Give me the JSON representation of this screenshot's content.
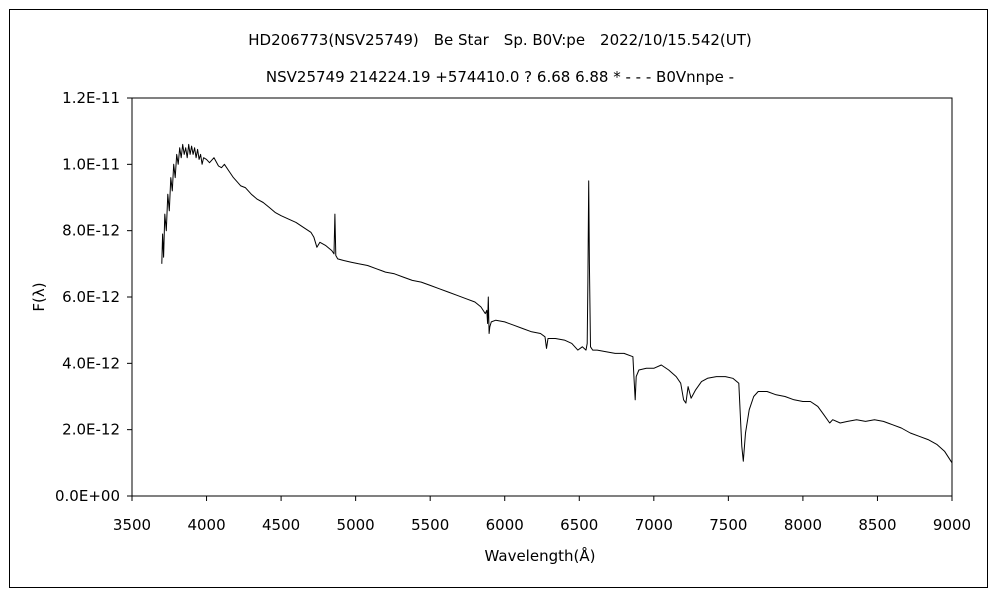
{
  "chart_data": {
    "type": "line",
    "title": "HD206773(NSV25749)　Be Star　Sp. B0V:pe　2022/10/15.542(UT)",
    "subtitle": "NSV25749 214224.19 +574410.0 ? 6.68 6.88 * - - - B0Vnnpe -",
    "xlabel": "Wavelength(Å)",
    "ylabel": "F(λ)",
    "xlim": [
      3500,
      9000
    ],
    "ylim": [
      0,
      1.2e-11
    ],
    "x_ticks": [
      3500,
      4000,
      4500,
      5000,
      5500,
      6000,
      6500,
      7000,
      7500,
      8000,
      8500,
      9000
    ],
    "x_tick_labels": [
      "3500",
      "4000",
      "4500",
      "5000",
      "5500",
      "6000",
      "6500",
      "7000",
      "7500",
      "8000",
      "8500",
      "9000"
    ],
    "y_ticks": [
      0,
      2e-12,
      4e-12,
      6e-12,
      8e-12,
      1e-11,
      1.2e-11
    ],
    "y_tick_labels": [
      "0.0E+00",
      "2.0E-12",
      "4.0E-12",
      "6.0E-12",
      "8.0E-12",
      "1.0E-11",
      "1.2E-11"
    ],
    "grid": false,
    "legend": "none",
    "series": [
      {
        "color": "#000000",
        "points": [
          [
            3700,
            7e-12
          ],
          [
            3705,
            7.9e-12
          ],
          [
            3712,
            7.2e-12
          ],
          [
            3720,
            8.5e-12
          ],
          [
            3730,
            8e-12
          ],
          [
            3740,
            9.1e-12
          ],
          [
            3750,
            8.6e-12
          ],
          [
            3760,
            9.6e-12
          ],
          [
            3770,
            9.2e-12
          ],
          [
            3780,
            1e-11
          ],
          [
            3790,
            9.6e-12
          ],
          [
            3800,
            1.03e-11
          ],
          [
            3810,
            1e-11
          ],
          [
            3820,
            1.05e-11
          ],
          [
            3830,
            1.02e-11
          ],
          [
            3840,
            1.06e-11
          ],
          [
            3850,
            1.03e-11
          ],
          [
            3860,
            1.05e-11
          ],
          [
            3870,
            1.02e-11
          ],
          [
            3880,
            1.06e-11
          ],
          [
            3890,
            1.03e-11
          ],
          [
            3900,
            1.055e-11
          ],
          [
            3910,
            1.03e-11
          ],
          [
            3920,
            1.05e-11
          ],
          [
            3930,
            1.02e-11
          ],
          [
            3940,
            1.045e-11
          ],
          [
            3950,
            1.015e-11
          ],
          [
            3960,
            1.03e-11
          ],
          [
            3970,
            1e-11
          ],
          [
            3980,
            1.02e-11
          ],
          [
            4000,
            1.015e-11
          ],
          [
            4020,
            1.005e-11
          ],
          [
            4050,
            1.02e-11
          ],
          [
            4080,
            9.95e-12
          ],
          [
            4100,
            9.9e-12
          ],
          [
            4120,
            1e-11
          ],
          [
            4150,
            9.8e-12
          ],
          [
            4180,
            9.6e-12
          ],
          [
            4200,
            9.5e-12
          ],
          [
            4230,
            9.35e-12
          ],
          [
            4260,
            9.3e-12
          ],
          [
            4300,
            9.1e-12
          ],
          [
            4340,
            8.95e-12
          ],
          [
            4380,
            8.85e-12
          ],
          [
            4420,
            8.7e-12
          ],
          [
            4460,
            8.55e-12
          ],
          [
            4500,
            8.45e-12
          ],
          [
            4550,
            8.35e-12
          ],
          [
            4600,
            8.25e-12
          ],
          [
            4650,
            8.1e-12
          ],
          [
            4700,
            7.95e-12
          ],
          [
            4720,
            7.8e-12
          ],
          [
            4740,
            7.5e-12
          ],
          [
            4760,
            7.65e-12
          ],
          [
            4800,
            7.55e-12
          ],
          [
            4840,
            7.4e-12
          ],
          [
            4855,
            7.3e-12
          ],
          [
            4861,
            8.5e-12
          ],
          [
            4867,
            7.25e-12
          ],
          [
            4880,
            7.15e-12
          ],
          [
            4920,
            7.1e-12
          ],
          [
            4970,
            7.05e-12
          ],
          [
            5020,
            7e-12
          ],
          [
            5080,
            6.95e-12
          ],
          [
            5140,
            6.85e-12
          ],
          [
            5200,
            6.75e-12
          ],
          [
            5260,
            6.7e-12
          ],
          [
            5320,
            6.6e-12
          ],
          [
            5380,
            6.5e-12
          ],
          [
            5440,
            6.45e-12
          ],
          [
            5500,
            6.35e-12
          ],
          [
            5560,
            6.25e-12
          ],
          [
            5620,
            6.15e-12
          ],
          [
            5680,
            6.05e-12
          ],
          [
            5740,
            5.95e-12
          ],
          [
            5800,
            5.85e-12
          ],
          [
            5840,
            5.7e-12
          ],
          [
            5870,
            5.5e-12
          ],
          [
            5880,
            5.6e-12
          ],
          [
            5885,
            5.2e-12
          ],
          [
            5890,
            6e-12
          ],
          [
            5895,
            4.9e-12
          ],
          [
            5900,
            5.1e-12
          ],
          [
            5910,
            5.25e-12
          ],
          [
            5940,
            5.3e-12
          ],
          [
            6000,
            5.25e-12
          ],
          [
            6060,
            5.15e-12
          ],
          [
            6120,
            5.05e-12
          ],
          [
            6180,
            4.95e-12
          ],
          [
            6240,
            4.9e-12
          ],
          [
            6270,
            4.8e-12
          ],
          [
            6280,
            4.45e-12
          ],
          [
            6290,
            4.75e-12
          ],
          [
            6340,
            4.75e-12
          ],
          [
            6400,
            4.7e-12
          ],
          [
            6450,
            4.6e-12
          ],
          [
            6490,
            4.4e-12
          ],
          [
            6520,
            4.5e-12
          ],
          [
            6545,
            4.4e-12
          ],
          [
            6553,
            4.6e-12
          ],
          [
            6558,
            6.5e-12
          ],
          [
            6563,
            9.5e-12
          ],
          [
            6568,
            7e-12
          ],
          [
            6575,
            4.5e-12
          ],
          [
            6590,
            4.4e-12
          ],
          [
            6620,
            4.4e-12
          ],
          [
            6680,
            4.35e-12
          ],
          [
            6740,
            4.3e-12
          ],
          [
            6800,
            4.3e-12
          ],
          [
            6860,
            4.2e-12
          ],
          [
            6868,
            3.5e-12
          ],
          [
            6875,
            2.9e-12
          ],
          [
            6882,
            3.6e-12
          ],
          [
            6900,
            3.8e-12
          ],
          [
            6950,
            3.85e-12
          ],
          [
            7000,
            3.85e-12
          ],
          [
            7050,
            3.95e-12
          ],
          [
            7100,
            3.8e-12
          ],
          [
            7150,
            3.6e-12
          ],
          [
            7180,
            3.4e-12
          ],
          [
            7200,
            2.9e-12
          ],
          [
            7215,
            2.8e-12
          ],
          [
            7230,
            3.3e-12
          ],
          [
            7250,
            2.95e-12
          ],
          [
            7280,
            3.2e-12
          ],
          [
            7320,
            3.45e-12
          ],
          [
            7360,
            3.55e-12
          ],
          [
            7420,
            3.6e-12
          ],
          [
            7480,
            3.6e-12
          ],
          [
            7530,
            3.55e-12
          ],
          [
            7570,
            3.4e-12
          ],
          [
            7590,
            1.5e-12
          ],
          [
            7600,
            1.05e-12
          ],
          [
            7615,
            1.9e-12
          ],
          [
            7640,
            2.6e-12
          ],
          [
            7670,
            3e-12
          ],
          [
            7700,
            3.15e-12
          ],
          [
            7760,
            3.15e-12
          ],
          [
            7820,
            3.05e-12
          ],
          [
            7880,
            3e-12
          ],
          [
            7940,
            2.9e-12
          ],
          [
            8000,
            2.85e-12
          ],
          [
            8050,
            2.85e-12
          ],
          [
            8100,
            2.7e-12
          ],
          [
            8140,
            2.45e-12
          ],
          [
            8180,
            2.2e-12
          ],
          [
            8200,
            2.3e-12
          ],
          [
            8250,
            2.2e-12
          ],
          [
            8300,
            2.25e-12
          ],
          [
            8360,
            2.3e-12
          ],
          [
            8420,
            2.25e-12
          ],
          [
            8480,
            2.3e-12
          ],
          [
            8540,
            2.25e-12
          ],
          [
            8600,
            2.15e-12
          ],
          [
            8660,
            2.05e-12
          ],
          [
            8720,
            1.9e-12
          ],
          [
            8780,
            1.8e-12
          ],
          [
            8840,
            1.7e-12
          ],
          [
            8900,
            1.55e-12
          ],
          [
            8950,
            1.35e-12
          ],
          [
            9000,
            1e-12
          ]
        ]
      }
    ]
  }
}
